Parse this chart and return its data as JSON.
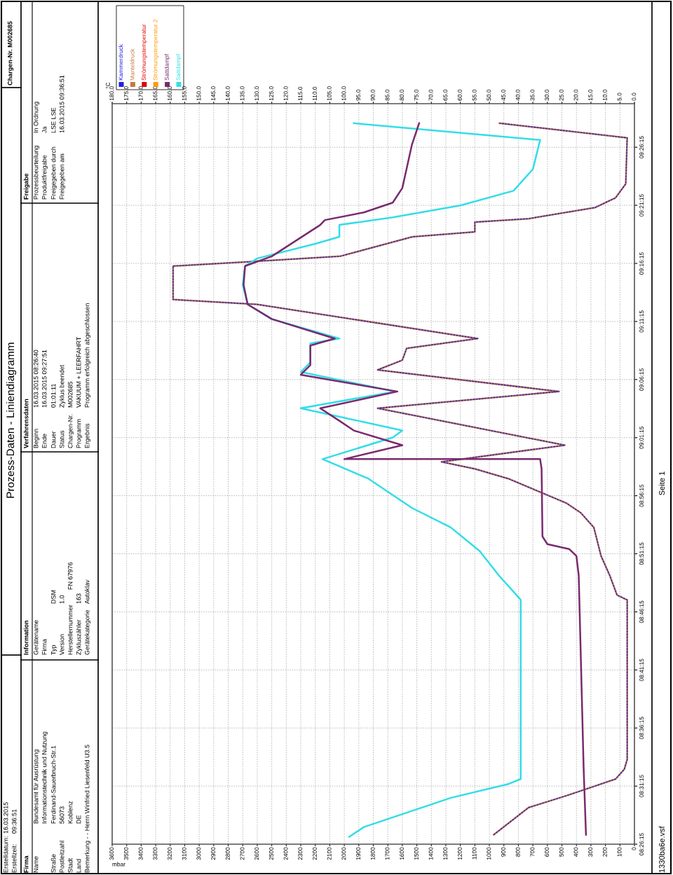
{
  "chart_data": {
    "type": "line",
    "title": "Prozess-Daten - Liniendiagramm",
    "xlabel": "mbar",
    "x2label": "°C",
    "ylim": [
      8.4375,
      9.5
    ],
    "yticks": [
      {
        "value": 8.4375,
        "label": "08:26:15"
      },
      {
        "value": 8.5208,
        "label": "08:31:15"
      },
      {
        "value": 8.6042,
        "label": "08:36:15"
      },
      {
        "value": 8.6875,
        "label": "08:41:15"
      },
      {
        "value": 8.7708,
        "label": "08:46:15"
      },
      {
        "value": 8.8542,
        "label": "08:51:15"
      },
      {
        "value": 8.9375,
        "label": "08:56:15"
      },
      {
        "value": 9.0208,
        "label": "09:01:15"
      },
      {
        "value": 9.1042,
        "label": "09:06:15"
      },
      {
        "value": 9.1875,
        "label": "09:11:15"
      },
      {
        "value": 9.2708,
        "label": "09:16:15"
      },
      {
        "value": 9.3542,
        "label": "09:21:15"
      },
      {
        "value": 9.4375,
        "label": "09:26:15"
      }
    ],
    "xlim": [
      3600,
      0
    ],
    "xticks": [
      0,
      100,
      200,
      300,
      400,
      500,
      600,
      700,
      800,
      900,
      1000,
      1100,
      1200,
      1300,
      1400,
      1500,
      1600,
      1700,
      1800,
      1900,
      2000,
      2100,
      2200,
      2300,
      2400,
      2500,
      2600,
      2700,
      2800,
      2900,
      3000,
      3100,
      3200,
      3300,
      3400,
      3500,
      3600
    ],
    "x2lim": [
      180,
      0
    ],
    "x2ticks": [
      {
        "value": 0,
        "label": "0.0"
      },
      {
        "value": 5,
        "label": "5.0"
      },
      {
        "value": 10,
        "label": "10.0"
      },
      {
        "value": 15,
        "label": "15.0"
      },
      {
        "value": 20,
        "label": "20.0"
      },
      {
        "value": 25,
        "label": "25.0"
      },
      {
        "value": 30,
        "label": "30.0"
      },
      {
        "value": 35,
        "label": "35.0"
      },
      {
        "value": 40,
        "label": "40.0"
      },
      {
        "value": 45,
        "label": "45.0"
      },
      {
        "value": 50,
        "label": "50.0"
      },
      {
        "value": 55,
        "label": "55.0"
      },
      {
        "value": 60,
        "label": "60.0"
      },
      {
        "value": 65,
        "label": "65.0"
      },
      {
        "value": 70,
        "label": "70.0"
      },
      {
        "value": 75,
        "label": "75.0"
      },
      {
        "value": 80,
        "label": "80.0"
      },
      {
        "value": 85,
        "label": "85.0"
      },
      {
        "value": 90,
        "label": "90.0"
      },
      {
        "value": 95,
        "label": "95.0"
      },
      {
        "value": 100,
        "label": "100.0"
      },
      {
        "value": 105,
        "label": "105.0"
      },
      {
        "value": 110,
        "label": "110.0"
      },
      {
        "value": 115,
        "label": "115.0"
      },
      {
        "value": 120,
        "label": "120.0"
      },
      {
        "value": 125,
        "label": "125.0"
      },
      {
        "value": 130,
        "label": "130.0"
      },
      {
        "value": 135,
        "label": "135.0"
      },
      {
        "value": 140,
        "label": "140.0"
      },
      {
        "value": 145,
        "label": "145.0"
      },
      {
        "value": 150,
        "label": "150.0"
      },
      {
        "value": 155,
        "label": "155.0"
      },
      {
        "value": 160,
        "label": "160.0"
      },
      {
        "value": 165,
        "label": "165.0"
      },
      {
        "value": 170,
        "label": "170.0"
      },
      {
        "value": 175,
        "label": "175.0"
      },
      {
        "value": 180,
        "label": "180.0"
      }
    ],
    "grid": true,
    "legend": "top left",
    "line_style": "solid",
    "marker": "none",
    "series": [
      {
        "name": "Kammerdruck",
        "color": "#2020e0",
        "line_style": "dashed",
        "x": [
          970,
          730,
          470,
          270,
          130,
          70,
          50,
          50,
          120,
          170,
          230,
          280,
          370,
          470,
          630,
          870,
          1100,
          1330,
          480,
          1770,
          520,
          1770,
          1600,
          1570,
          1080,
          2600,
          3180,
          3180,
          2670,
          2030,
          1530,
          1100,
          1100,
          730,
          270,
          130,
          60,
          50,
          930
        ],
        "values": [
          8.451,
          8.49,
          8.507,
          8.521,
          8.531,
          8.545,
          8.559,
          8.788,
          8.795,
          8.823,
          8.851,
          8.892,
          8.913,
          8.927,
          8.941,
          8.962,
          8.976,
          8.986,
          9.01,
          9.063,
          9.087,
          9.118,
          9.132,
          9.149,
          9.163,
          9.212,
          9.219,
          9.267,
          9.273,
          9.281,
          9.309,
          9.316,
          9.33,
          9.335,
          9.351,
          9.365,
          9.385,
          9.451,
          9.472
        ]
      },
      {
        "name": "Manteldruck",
        "color": "#c8783c",
        "x": [
          970,
          730,
          470,
          270,
          130,
          70,
          50,
          50,
          120,
          170,
          230,
          280,
          370,
          470,
          630,
          870,
          1100,
          1330,
          480,
          1770,
          520,
          1770,
          1600,
          1570,
          1080,
          2600,
          3180,
          3180,
          2670,
          2030,
          1530,
          1100,
          1100,
          730,
          270,
          130,
          60,
          50,
          930
        ],
        "values": [
          8.451,
          8.49,
          8.507,
          8.521,
          8.531,
          8.545,
          8.559,
          8.788,
          8.795,
          8.823,
          8.851,
          8.892,
          8.913,
          8.927,
          8.941,
          8.962,
          8.976,
          8.986,
          9.01,
          9.063,
          9.087,
          9.118,
          9.132,
          9.149,
          9.163,
          9.212,
          9.219,
          9.267,
          9.273,
          9.281,
          9.309,
          9.316,
          9.33,
          9.335,
          9.351,
          9.365,
          9.385,
          9.451,
          9.472
        ]
      },
      {
        "name": "Strömungstemperatur",
        "color": "#e00000",
        "axis": "x2"
      },
      {
        "name": "Strömungstemperatur 2",
        "color": "#ff9900",
        "axis": "x2"
      },
      {
        "name": "Sattdampf",
        "color": "#7a2a6e",
        "axis": "x2",
        "x": [
          16.7,
          17.5,
          19.2,
          20.0,
          22.5,
          30.0,
          31.7,
          32.0,
          32.5,
          100.0,
          80.0,
          96.7,
          101.7,
          108.3,
          81.7,
          115.0,
          111.7,
          111.7,
          103.3,
          125.0,
          133.3,
          134.7,
          134.2,
          125.0,
          108.3,
          106.7,
          93.3,
          83.3,
          80.0,
          76.7,
          74.2
        ],
        "values": [
          8.451,
          8.545,
          8.823,
          8.851,
          8.861,
          8.868,
          8.879,
          8.976,
          8.99,
          8.99,
          9.01,
          9.031,
          9.045,
          9.063,
          9.087,
          9.111,
          9.125,
          9.153,
          9.163,
          9.191,
          9.212,
          9.24,
          9.267,
          9.281,
          9.326,
          9.333,
          9.344,
          9.358,
          9.379,
          9.441,
          9.472
        ]
      },
      {
        "name": "Sattdampf",
        "color": "#33dde8",
        "axis": "x2",
        "x": [
          98.3,
          93.3,
          63.3,
          43.3,
          39.2,
          39.2,
          40.0,
          46.7,
          53.3,
          63.3,
          76.7,
          91.7,
          107.5,
          83.3,
          80.0,
          115.0,
          82.5,
          115.0,
          111.7,
          111.7,
          101.7,
          113.3,
          125.0,
          133.3,
          135.0,
          134.2,
          130.0,
          110.0,
          101.7,
          101.7,
          83.3,
          60.0,
          41.7,
          35.0,
          32.5,
          96.7
        ],
        "values": [
          8.448,
          8.462,
          8.504,
          8.524,
          8.531,
          8.788,
          8.792,
          8.823,
          8.858,
          8.892,
          8.92,
          8.962,
          8.99,
          9.021,
          9.031,
          9.063,
          9.087,
          9.115,
          9.129,
          9.156,
          9.163,
          9.177,
          9.191,
          9.212,
          9.24,
          9.267,
          9.278,
          9.299,
          9.309,
          9.326,
          9.337,
          9.354,
          9.375,
          9.406,
          9.448,
          9.472
        ]
      }
    ],
    "annotations": [
      "Erstelldatum:",
      "16.03.2015",
      "Erstellzeit:",
      "09:36:51",
      "Chargen-Nr. M002685",
      "Firma",
      "Information",
      "Verfahrensdaten",
      "Freigabe",
      "Name",
      "Straße",
      "Postleitzahl",
      "Stadt",
      "Land",
      "Bemerkung - - Herrn Winfried Liesenfeld U3.5",
      "Bundesamt für Ausrüstung",
      "Informationstechnik und Nutzung",
      "Ferdinand-Sauerbruch-Str.1",
      "56073",
      "Koblenz",
      "DE",
      "Gerätename",
      "Firma",
      "Typ",
      "Version",
      "Herstellernummer",
      "Zykluszähler",
      "Gerätekategorie",
      "DSM",
      "1.0",
      "FN 67976",
      "163",
      "Autoklav",
      "Beginn",
      "Ende",
      "Dauer",
      "Status",
      "Chargen-Nr.",
      "Programm",
      "Ergebnis",
      "16.03.2015 08:26:40",
      "16.03.2015 09:27:51",
      "01:01:11",
      "Zyklus beendet",
      "M002685",
      "VAKUUM + LEERFAHRT",
      "Programm erfolgreich abgeschlossen",
      "Prozessbeurteilung",
      "Produktfreigabe",
      "Freigegeben durch",
      "Freigegeben am",
      "In Ordnung",
      "Ja",
      "LSE LSE",
      "16.03.2015 09:36:51",
      "1330ba6e.vsf",
      "Seite 1"
    ]
  }
}
